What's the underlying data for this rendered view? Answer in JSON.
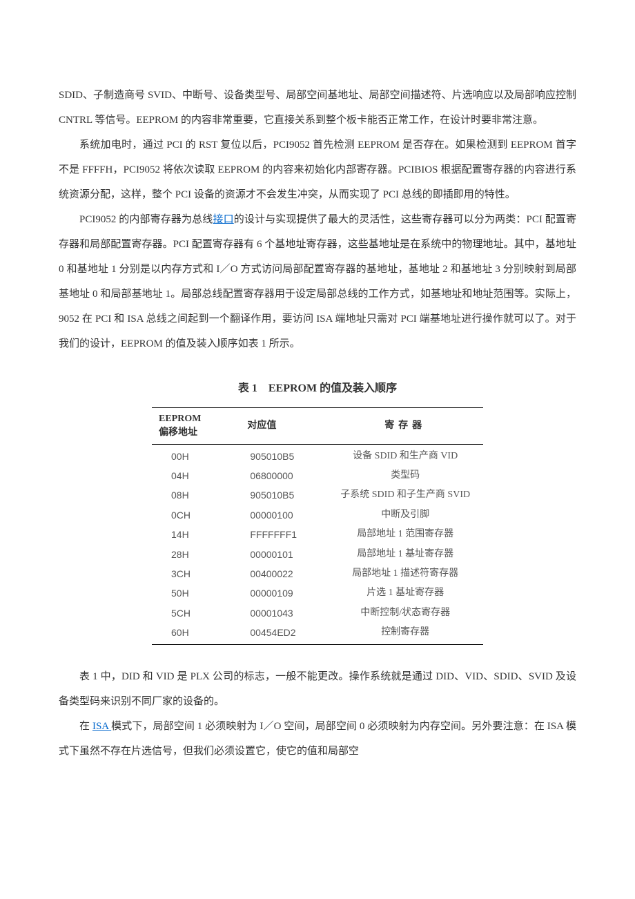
{
  "paragraphs": {
    "p1": "SDID、子制造商号 SVID、中断号、设备类型号、局部空间基地址、局部空间描述符、片选响应以及局部响应控制 CNTRL 等信号。EEPROM 的内容非常重要，它直接关系到整个板卡能否正常工作，在设计时要非常注意。",
    "p2": "系统加电时，通过 PCI 的 RST 复位以后，PCI9052 首先检测 EEPROM 是否存在。如果检测到 EEPROM 首字不是 FFFFH，PCI9052 将依次读取 EEPROM 的内容来初始化内部寄存器。PCIBIOS 根据配置寄存器的内容进行系统资源分配，这样，整个 PCI 设备的资源才不会发生冲突，从而实现了 PCI 总线的即插即用的特性。",
    "p3a": "PCI9052 的内部寄存器为总线",
    "p3_link": "接口",
    "p3b": "的设计与实现提供了最大的灵活性，这些寄存器可以分为两类：PCI 配置寄存器和局部配置寄存器。PCI 配置寄存器有 6 个基地址寄存器，这些基地址是在系统中的物理地址。其中，基地址 0 和基地址 1 分别是以内存方式和 I／O 方式访问局部配置寄存器的基地址，基地址 2 和基地址 3 分别映射到局部基地址 0 和局部基地址 1。局部总线配置寄存器用于设定局部总线的工作方式，如基地址和地址范围等。实际上，9052 在 PCI 和 ISA 总线之间起到一个翻译作用，要访问 ISA 端地址只需对 PCI 端基地址进行操作就可以了。对于我们的设计，EEPROM 的值及装入顺序如表 1 所示。",
    "p4": "表 1 中，DID 和 VID 是 PLX 公司的标志，一般不能更改。操作系统就是通过 DID、VID、SDID、SVID 及设备类型码来识别不同厂家的设备的。",
    "p5a": "在 ",
    "p5_link": "ISA ",
    "p5b": "模式下，局部空间 1 必须映射为 I／O 空间，局部空间 0 必须映射为内存空间。另外要注意：在 ISA 模式下虽然不存在片选信号，但我们必须设置它，使它的值和局部空"
  },
  "table": {
    "title": "表 1 EEPROM 的值及装入顺序",
    "headers": {
      "col1_line1": "EEPROM",
      "col1_line2": "偏移地址",
      "col2": "对应值",
      "col3": "寄存器"
    },
    "rows": [
      {
        "offset": "00H",
        "value": "905010B5",
        "register": "设备 SDID 和生产商 VID"
      },
      {
        "offset": "04H",
        "value": "06800000",
        "register": "类型码"
      },
      {
        "offset": "08H",
        "value": "905010B5",
        "register": "子系统 SDID 和子生产商 SVID"
      },
      {
        "offset": "0CH",
        "value": "00000100",
        "register": "中断及引脚"
      },
      {
        "offset": "14H",
        "value": "FFFFFFF1",
        "register": "局部地址 1 范围寄存器"
      },
      {
        "offset": "28H",
        "value": "00000101",
        "register": "局部地址 1 基址寄存器"
      },
      {
        "offset": "3CH",
        "value": "00400022",
        "register": "局部地址 1 描述符寄存器"
      },
      {
        "offset": "50H",
        "value": "00000109",
        "register": "片选 1 基址寄存器"
      },
      {
        "offset": "5CH",
        "value": "00001043",
        "register": "中断控制/状态寄存器"
      },
      {
        "offset": "60H",
        "value": "00454ED2",
        "register": "控制寄存器"
      }
    ]
  }
}
